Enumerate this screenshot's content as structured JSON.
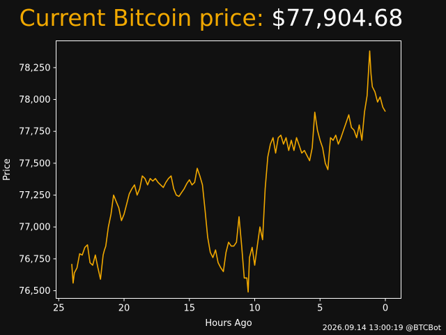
{
  "title": {
    "label": "Current Bitcoin price:",
    "price": "$77,904.68"
  },
  "timestamp": "2026.09.14 13:00:19 @BTCBot",
  "colors": {
    "background": "#111111",
    "line": "#f2a900",
    "title_label": "#f2a900",
    "title_price": "#ffffff",
    "axis": "#ffffff"
  },
  "chart_data": {
    "type": "line",
    "xlabel": "Hours Ago",
    "ylabel": "Price",
    "xlim": [
      25.2,
      -1.2
    ],
    "ylim": [
      76440,
      78460
    ],
    "x_ticks": [
      25,
      20,
      15,
      10,
      5,
      0
    ],
    "y_ticks": [
      76500,
      76750,
      77000,
      77250,
      77500,
      77750,
      78000,
      78250
    ],
    "y_tick_labels": [
      "76,500",
      "76,750",
      "77,000",
      "77,250",
      "77,500",
      "77,750",
      "78,000",
      "78,250"
    ],
    "grid": false,
    "series": [
      {
        "x": [
          24.0,
          23.9,
          23.8,
          23.6,
          23.4,
          23.2,
          23.0,
          22.8,
          22.6,
          22.4,
          22.2,
          22.0,
          21.8,
          21.6,
          21.5,
          21.4,
          21.2,
          21.0,
          20.8,
          20.6,
          20.4,
          20.2,
          20.0,
          19.8,
          19.6,
          19.4,
          19.2,
          19.0,
          18.8,
          18.6,
          18.4,
          18.2,
          18.0,
          17.8,
          17.6,
          17.4,
          17.2,
          17.0,
          16.8,
          16.6,
          16.4,
          16.2,
          16.0,
          15.8,
          15.6,
          15.4,
          15.2,
          15.0,
          14.8,
          14.6,
          14.4,
          14.2,
          14.0,
          13.8,
          13.6,
          13.4,
          13.2,
          13.0,
          12.8,
          12.6,
          12.4,
          12.2,
          12.0,
          11.8,
          11.6,
          11.4,
          11.2,
          11.0,
          10.8,
          10.6,
          10.5,
          10.4,
          10.2,
          10.0,
          9.8,
          9.6,
          9.4,
          9.2,
          9.0,
          8.8,
          8.6,
          8.4,
          8.2,
          8.0,
          7.8,
          7.6,
          7.4,
          7.2,
          7.0,
          6.8,
          6.6,
          6.4,
          6.2,
          6.0,
          5.8,
          5.6,
          5.4,
          5.2,
          5.0,
          4.8,
          4.6,
          4.4,
          4.2,
          4.0,
          3.8,
          3.6,
          3.4,
          3.2,
          3.0,
          2.8,
          2.6,
          2.4,
          2.2,
          2.0,
          1.8,
          1.6,
          1.4,
          1.2,
          1.1,
          1.0,
          0.8,
          0.6,
          0.4,
          0.2,
          0.0
        ],
        "y": [
          76710,
          76560,
          76640,
          76680,
          76790,
          76780,
          76840,
          76860,
          76720,
          76700,
          76780,
          76680,
          76590,
          76780,
          76820,
          76850,
          77000,
          77100,
          77250,
          77200,
          77150,
          77050,
          77100,
          77180,
          77260,
          77300,
          77330,
          77250,
          77300,
          77400,
          77380,
          77330,
          77380,
          77360,
          77380,
          77350,
          77330,
          77310,
          77350,
          77380,
          77400,
          77300,
          77250,
          77240,
          77270,
          77300,
          77340,
          77370,
          77330,
          77350,
          77460,
          77400,
          77330,
          77130,
          76920,
          76800,
          76760,
          76820,
          76720,
          76680,
          76650,
          76800,
          76880,
          76850,
          76850,
          76880,
          77080,
          76850,
          76600,
          76600,
          76490,
          76760,
          76840,
          76700,
          76850,
          77000,
          76900,
          77300,
          77550,
          77650,
          77700,
          77580,
          77700,
          77720,
          77650,
          77700,
          77600,
          77680,
          77600,
          77700,
          77640,
          77580,
          77600,
          77560,
          77520,
          77620,
          77900,
          77760,
          77680,
          77620,
          77500,
          77450,
          77700,
          77680,
          77720,
          77650,
          77700,
          77760,
          77820,
          77880,
          77780,
          77760,
          77700,
          77800,
          77680,
          77900,
          78030,
          78380,
          78200,
          78100,
          78060,
          77980,
          78020,
          77940,
          77905
        ]
      }
    ]
  }
}
